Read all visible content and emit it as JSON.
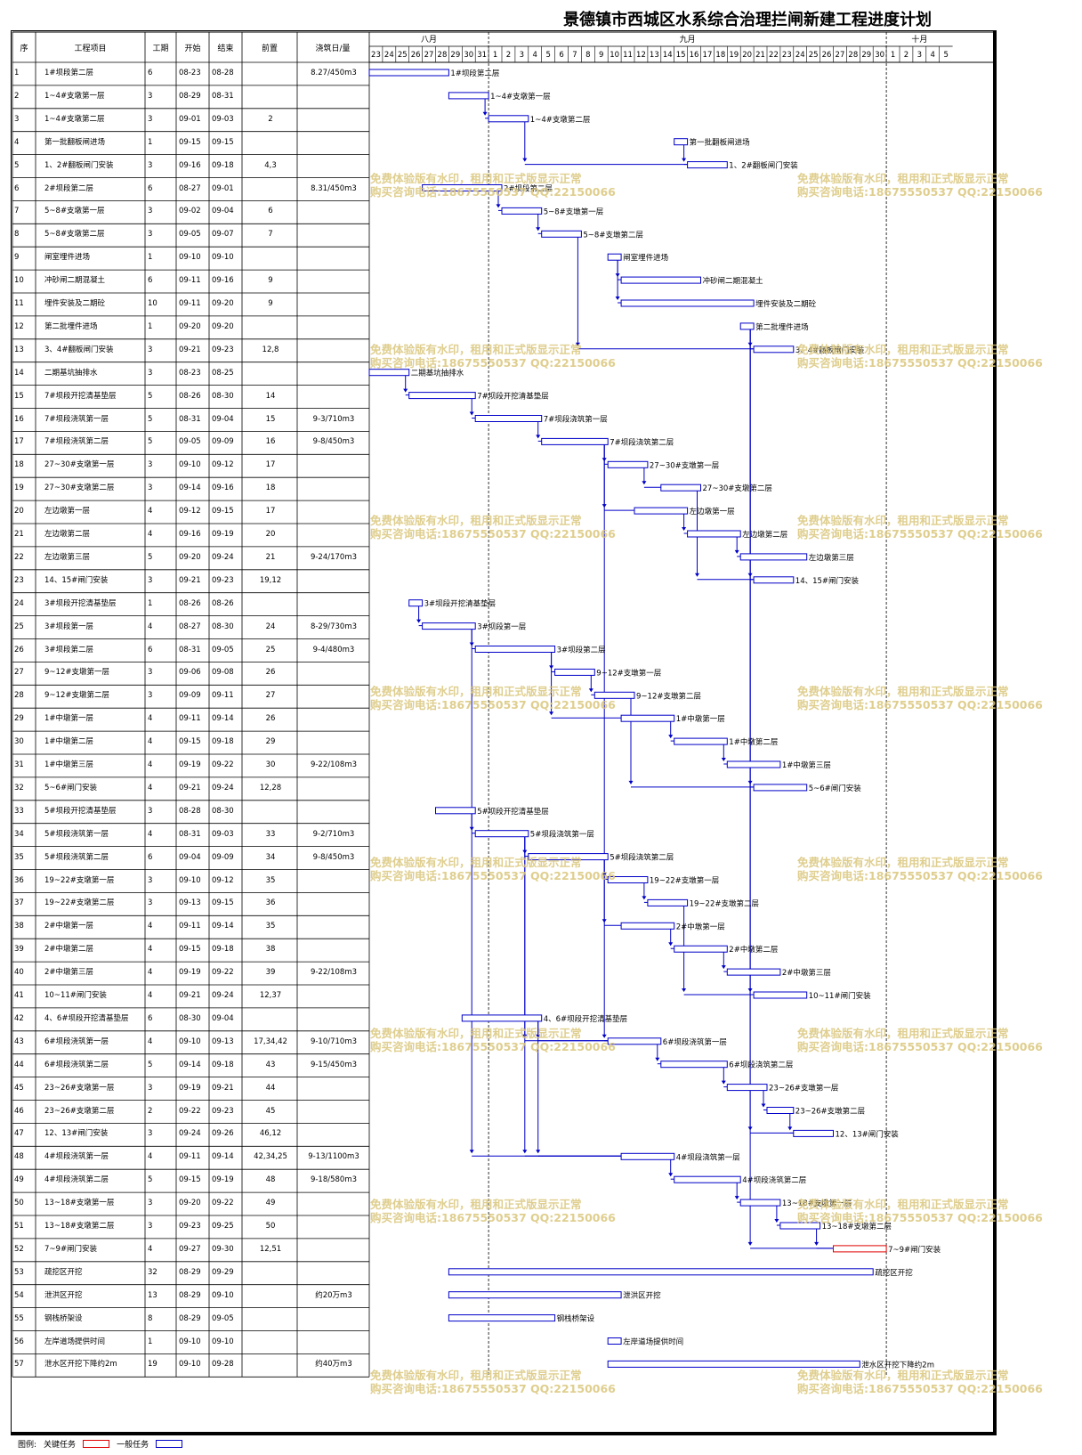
{
  "title": "景德镇市西城区水系综合治理拦闸新建工程进度计划",
  "columns": {
    "seq": "序",
    "name": "工程项目",
    "dur": "工期",
    "start": "开始",
    "end": "结束",
    "pred": "前置",
    "pour": "浇筑日/量"
  },
  "months": [
    {
      "label": "八月",
      "days": [
        23,
        24,
        25,
        26,
        27,
        28,
        29,
        30,
        31
      ]
    },
    {
      "label": "九月",
      "days": [
        1,
        2,
        3,
        4,
        5,
        6,
        7,
        8,
        9,
        10,
        11,
        12,
        13,
        14,
        15,
        16,
        17,
        18,
        19,
        20,
        21,
        22,
        23,
        24,
        25,
        26,
        27,
        28,
        29,
        30
      ]
    },
    {
      "label": "十月",
      "days": [
        1,
        2,
        3,
        4,
        5
      ]
    }
  ],
  "watermark": {
    "line1": "免费体验版有水印，租用和正式版显示正常",
    "line2": "购买咨询电话:18675550537 QQ:22150066"
  },
  "legend": {
    "label": "图例:",
    "critical": "关键任务",
    "normal": "一般任务",
    "critical_color": "#e00000",
    "normal_color": "#0000c8"
  },
  "colors": {
    "bar": "#0000c8",
    "critical": "#e00000",
    "text": "#000000"
  },
  "tasks": [
    {
      "id": "1",
      "name": "1#坝段第二层",
      "dur": "6",
      "start": "08-23",
      "end": "08-28",
      "pred": "",
      "pour": "8.27/450m3"
    },
    {
      "id": "2",
      "name": "1~4#支墩第一层",
      "dur": "3",
      "start": "08-29",
      "end": "08-31",
      "pred": "",
      "pour": ""
    },
    {
      "id": "3",
      "name": "1~4#支墩第二层",
      "dur": "3",
      "start": "09-01",
      "end": "09-03",
      "pred": "2",
      "pour": ""
    },
    {
      "id": "4",
      "name": "第一批翻板闸进场",
      "dur": "1",
      "start": "09-15",
      "end": "09-15",
      "pred": "",
      "pour": ""
    },
    {
      "id": "5",
      "name": "1、2#翻板闸门安装",
      "dur": "3",
      "start": "09-16",
      "end": "09-18",
      "pred": "4,3",
      "pour": ""
    },
    {
      "id": "6",
      "name": "2#坝段第二层",
      "dur": "6",
      "start": "08-27",
      "end": "09-01",
      "pred": "",
      "pour": "8.31/450m3"
    },
    {
      "id": "7",
      "name": "5~8#支墩第一层",
      "dur": "3",
      "start": "09-02",
      "end": "09-04",
      "pred": "6",
      "pour": ""
    },
    {
      "id": "8",
      "name": "5~8#支墩第二层",
      "dur": "3",
      "start": "09-05",
      "end": "09-07",
      "pred": "7",
      "pour": ""
    },
    {
      "id": "9",
      "name": "闸室埋件进场",
      "dur": "1",
      "start": "09-10",
      "end": "09-10",
      "pred": "",
      "pour": ""
    },
    {
      "id": "10",
      "name": "冲砂闸二期混凝土",
      "dur": "6",
      "start": "09-11",
      "end": "09-16",
      "pred": "9",
      "pour": ""
    },
    {
      "id": "11",
      "name": "埋件安装及二期砼",
      "dur": "10",
      "start": "09-11",
      "end": "09-20",
      "pred": "9",
      "pour": ""
    },
    {
      "id": "12",
      "name": "第二批埋件进场",
      "dur": "1",
      "start": "09-20",
      "end": "09-20",
      "pred": "",
      "pour": ""
    },
    {
      "id": "13",
      "name": "3、4#翻板闸门安装",
      "dur": "3",
      "start": "09-21",
      "end": "09-23",
      "pred": "12,8",
      "pour": ""
    },
    {
      "id": "14",
      "name": "二期基坑抽排水",
      "dur": "3",
      "start": "08-23",
      "end": "08-25",
      "pred": "",
      "pour": ""
    },
    {
      "id": "15",
      "name": "7#坝段开挖清基垫层",
      "dur": "5",
      "start": "08-26",
      "end": "08-30",
      "pred": "14",
      "pour": ""
    },
    {
      "id": "16",
      "name": "7#坝段浇筑第一层",
      "dur": "5",
      "start": "08-31",
      "end": "09-04",
      "pred": "15",
      "pour": "9-3/710m3"
    },
    {
      "id": "17",
      "name": "7#坝段浇筑第二层",
      "dur": "5",
      "start": "09-05",
      "end": "09-09",
      "pred": "16",
      "pour": "9-8/450m3"
    },
    {
      "id": "18",
      "name": "27~30#支墩第一层",
      "dur": "3",
      "start": "09-10",
      "end": "09-12",
      "pred": "17",
      "pour": ""
    },
    {
      "id": "19",
      "name": "27~30#支墩第二层",
      "dur": "3",
      "start": "09-14",
      "end": "09-16",
      "pred": "18",
      "pour": ""
    },
    {
      "id": "20",
      "name": "左边墩第一层",
      "dur": "4",
      "start": "09-12",
      "end": "09-15",
      "pred": "17",
      "pour": ""
    },
    {
      "id": "21",
      "name": "左边墩第二层",
      "dur": "4",
      "start": "09-16",
      "end": "09-19",
      "pred": "20",
      "pour": ""
    },
    {
      "id": "22",
      "name": "左边墩第三层",
      "dur": "5",
      "start": "09-20",
      "end": "09-24",
      "pred": "21",
      "pour": "9-24/170m3"
    },
    {
      "id": "23",
      "name": "14、15#闸门安装",
      "dur": "3",
      "start": "09-21",
      "end": "09-23",
      "pred": "19,12",
      "pour": ""
    },
    {
      "id": "24",
      "name": "3#坝段开挖清基垫层",
      "dur": "1",
      "start": "08-26",
      "end": "08-26",
      "pred": "",
      "pour": ""
    },
    {
      "id": "25",
      "name": "3#坝段第一层",
      "dur": "4",
      "start": "08-27",
      "end": "08-30",
      "pred": "24",
      "pour": "8-29/730m3"
    },
    {
      "id": "26",
      "name": "3#坝段第二层",
      "dur": "6",
      "start": "08-31",
      "end": "09-05",
      "pred": "25",
      "pour": "9-4/480m3"
    },
    {
      "id": "27",
      "name": "9~12#支墩第一层",
      "dur": "3",
      "start": "09-06",
      "end": "09-08",
      "pred": "26",
      "pour": ""
    },
    {
      "id": "28",
      "name": "9~12#支墩第二层",
      "dur": "3",
      "start": "09-09",
      "end": "09-11",
      "pred": "27",
      "pour": ""
    },
    {
      "id": "29",
      "name": "1#中墩第一层",
      "dur": "4",
      "start": "09-11",
      "end": "09-14",
      "pred": "26",
      "pour": ""
    },
    {
      "id": "30",
      "name": "1#中墩第二层",
      "dur": "4",
      "start": "09-15",
      "end": "09-18",
      "pred": "29",
      "pour": ""
    },
    {
      "id": "31",
      "name": "1#中墩第三层",
      "dur": "4",
      "start": "09-19",
      "end": "09-22",
      "pred": "30",
      "pour": "9-22/108m3"
    },
    {
      "id": "32",
      "name": "5~6#闸门安装",
      "dur": "4",
      "start": "09-21",
      "end": "09-24",
      "pred": "12,28",
      "pour": ""
    },
    {
      "id": "33",
      "name": "5#坝段开挖清基垫层",
      "dur": "3",
      "start": "08-28",
      "end": "08-30",
      "pred": "",
      "pour": ""
    },
    {
      "id": "34",
      "name": "5#坝段浇筑第一层",
      "dur": "4",
      "start": "08-31",
      "end": "09-03",
      "pred": "33",
      "pour": "9-2/710m3"
    },
    {
      "id": "35",
      "name": "5#坝段浇筑第二层",
      "dur": "6",
      "start": "09-04",
      "end": "09-09",
      "pred": "34",
      "pour": "9-8/450m3"
    },
    {
      "id": "36",
      "name": "19~22#支墩第一层",
      "dur": "3",
      "start": "09-10",
      "end": "09-12",
      "pred": "35",
      "pour": ""
    },
    {
      "id": "37",
      "name": "19~22#支墩第二层",
      "dur": "3",
      "start": "09-13",
      "end": "09-15",
      "pred": "36",
      "pour": ""
    },
    {
      "id": "38",
      "name": "2#中墩第一层",
      "dur": "4",
      "start": "09-11",
      "end": "09-14",
      "pred": "35",
      "pour": ""
    },
    {
      "id": "39",
      "name": "2#中墩第二层",
      "dur": "4",
      "start": "09-15",
      "end": "09-18",
      "pred": "38",
      "pour": ""
    },
    {
      "id": "40",
      "name": "2#中墩第三层",
      "dur": "4",
      "start": "09-19",
      "end": "09-22",
      "pred": "39",
      "pour": "9-22/108m3"
    },
    {
      "id": "41",
      "name": "10~11#闸门安装",
      "dur": "4",
      "start": "09-21",
      "end": "09-24",
      "pred": "12,37",
      "pour": ""
    },
    {
      "id": "42",
      "name": "4、6#坝段开挖清基垫层",
      "dur": "6",
      "start": "08-30",
      "end": "09-04",
      "pred": "",
      "pour": ""
    },
    {
      "id": "43",
      "name": "6#坝段浇筑第一层",
      "dur": "4",
      "start": "09-10",
      "end": "09-13",
      "pred": "17,34,42",
      "pour": "9-10/710m3"
    },
    {
      "id": "44",
      "name": "6#坝段浇筑第二层",
      "dur": "5",
      "start": "09-14",
      "end": "09-18",
      "pred": "43",
      "pour": "9-15/450m3"
    },
    {
      "id": "45",
      "name": "23~26#支墩第一层",
      "dur": "3",
      "start": "09-19",
      "end": "09-21",
      "pred": "44",
      "pour": ""
    },
    {
      "id": "46",
      "name": "23~26#支墩第二层",
      "dur": "2",
      "start": "09-22",
      "end": "09-23",
      "pred": "45",
      "pour": ""
    },
    {
      "id": "47",
      "name": "12、13#闸门安装",
      "dur": "3",
      "start": "09-24",
      "end": "09-26",
      "pred": "46,12",
      "pour": ""
    },
    {
      "id": "48",
      "name": "4#坝段浇筑第一层",
      "dur": "4",
      "start": "09-11",
      "end": "09-14",
      "pred": "42,34,25",
      "pour": "9-13/1100m3"
    },
    {
      "id": "49",
      "name": "4#坝段浇筑第二层",
      "dur": "5",
      "start": "09-15",
      "end": "09-19",
      "pred": "48",
      "pour": "9-18/580m3"
    },
    {
      "id": "50",
      "name": "13~18#支墩第一层",
      "dur": "3",
      "start": "09-20",
      "end": "09-22",
      "pred": "49",
      "pour": ""
    },
    {
      "id": "51",
      "name": "13~18#支墩第二层",
      "dur": "3",
      "start": "09-23",
      "end": "09-25",
      "pred": "50",
      "pour": ""
    },
    {
      "id": "52",
      "name": "7~9#闸门安装",
      "dur": "4",
      "start": "09-27",
      "end": "09-30",
      "pred": "12,51",
      "pour": "",
      "critical": true
    },
    {
      "id": "53",
      "name": "疏挖区开挖",
      "dur": "32",
      "start": "08-29",
      "end": "09-29",
      "pred": "",
      "pour": ""
    },
    {
      "id": "54",
      "name": "泄洪区开挖",
      "dur": "13",
      "start": "08-29",
      "end": "09-10",
      "pred": "",
      "pour": "约20万m3"
    },
    {
      "id": "55",
      "name": "钢栈桥架设",
      "dur": "8",
      "start": "08-29",
      "end": "09-05",
      "pred": "",
      "pour": ""
    },
    {
      "id": "56",
      "name": "左岸道场提供时间",
      "dur": "1",
      "start": "09-10",
      "end": "09-10",
      "pred": "",
      "pour": ""
    },
    {
      "id": "57",
      "name": "泄水区开挖下降约2m",
      "dur": "19",
      "start": "09-10",
      "end": "09-28",
      "pred": "",
      "pour": "约40万m3"
    }
  ]
}
